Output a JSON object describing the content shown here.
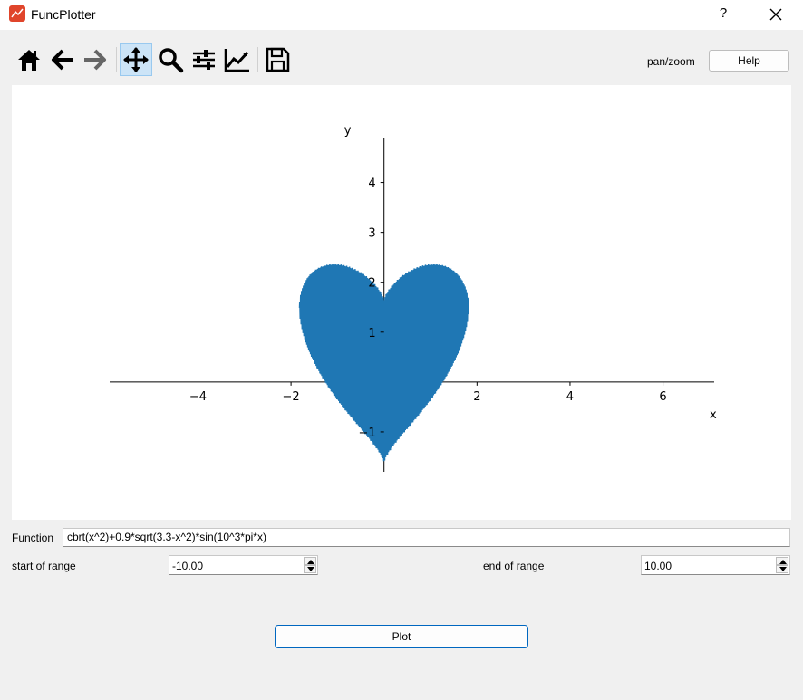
{
  "window": {
    "title": "FuncPlotter",
    "help_glyph": "?",
    "close_glyph": "✕"
  },
  "toolbar": {
    "tools": [
      {
        "name": "home-icon",
        "active": false
      },
      {
        "name": "back-arrow-icon",
        "active": false
      },
      {
        "name": "forward-arrow-icon",
        "active": false
      },
      {
        "name": "pan-move-icon",
        "active": true
      },
      {
        "name": "zoom-magnifier-icon",
        "active": false
      },
      {
        "name": "configure-subplots-icon",
        "active": false
      },
      {
        "name": "edit-axes-icon",
        "active": false
      },
      {
        "name": "save-figure-icon",
        "active": false
      }
    ],
    "mode_label": "pan/zoom",
    "help_label": "Help"
  },
  "form": {
    "function_label": "Function",
    "function_value": "cbrt(x^2)+0.9*sqrt(3.3-x^2)*sin(10^3*pi*x)",
    "start_label": "start of range",
    "start_value": "-10.00",
    "end_label": "end of range",
    "end_value": "10.00",
    "plot_label": "Plot"
  },
  "chart_data": {
    "type": "line",
    "function": "cbrt(x^2)+0.9*sqrt(3.3-x^2)*sin(10^3*pi*x)",
    "x_domain": [
      -1.8166,
      1.8166
    ],
    "xlim": [
      -5.9,
      7.1
    ],
    "ylim": [
      -1.8,
      4.9
    ],
    "xlabel": "x",
    "ylabel": "y",
    "x_ticks": [
      -4,
      -2,
      2,
      4,
      6
    ],
    "x_tick_labels": [
      "−4",
      "−2",
      "2",
      "4",
      "6"
    ],
    "y_ticks": [
      -1,
      1,
      2,
      3,
      4
    ],
    "y_tick_labels": [
      "−1",
      "1",
      "2",
      "3",
      "4"
    ],
    "series": [
      {
        "color": "#1f77b4"
      }
    ],
    "grid": false,
    "axes_style": "centered spines through origin"
  },
  "colors": {
    "accent": "#0067c0",
    "line": "#1f77b4",
    "active_tool_bg": "#cce4f7"
  }
}
